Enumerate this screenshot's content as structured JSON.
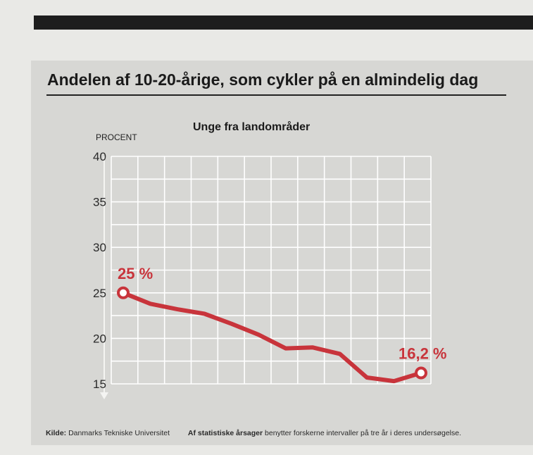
{
  "header": {
    "title": "Andelen af 10-20-årige, som cykler på en almindelig dag"
  },
  "footer": {
    "source_label": "Kilde:",
    "source_text": "Danmarks Tekniske Universitet",
    "note_label": "Af statistiske årsager",
    "note_text": "benytter forskerne intervaller på tre år i deres undersøgelse."
  },
  "colors": {
    "line": "#c8343b",
    "grid": "#ffffff",
    "background": "#d7d7d4"
  },
  "chart_data": {
    "type": "line",
    "title": "Unge fra landområder",
    "ylabel": "PROCENT",
    "xlabel": "",
    "ylim": [
      15,
      40
    ],
    "yticks": [
      15,
      20,
      25,
      30,
      35,
      40
    ],
    "grid": true,
    "series": [
      {
        "values": [
          25,
          23.8,
          23.2,
          22.7,
          21.6,
          20.4,
          18.9,
          19.0,
          18.3,
          15.7,
          15.3,
          16.2
        ]
      }
    ],
    "annotations": [
      {
        "point_index": 0,
        "text": "25 %"
      },
      {
        "point_index": 11,
        "text": "16,2 %"
      }
    ]
  }
}
